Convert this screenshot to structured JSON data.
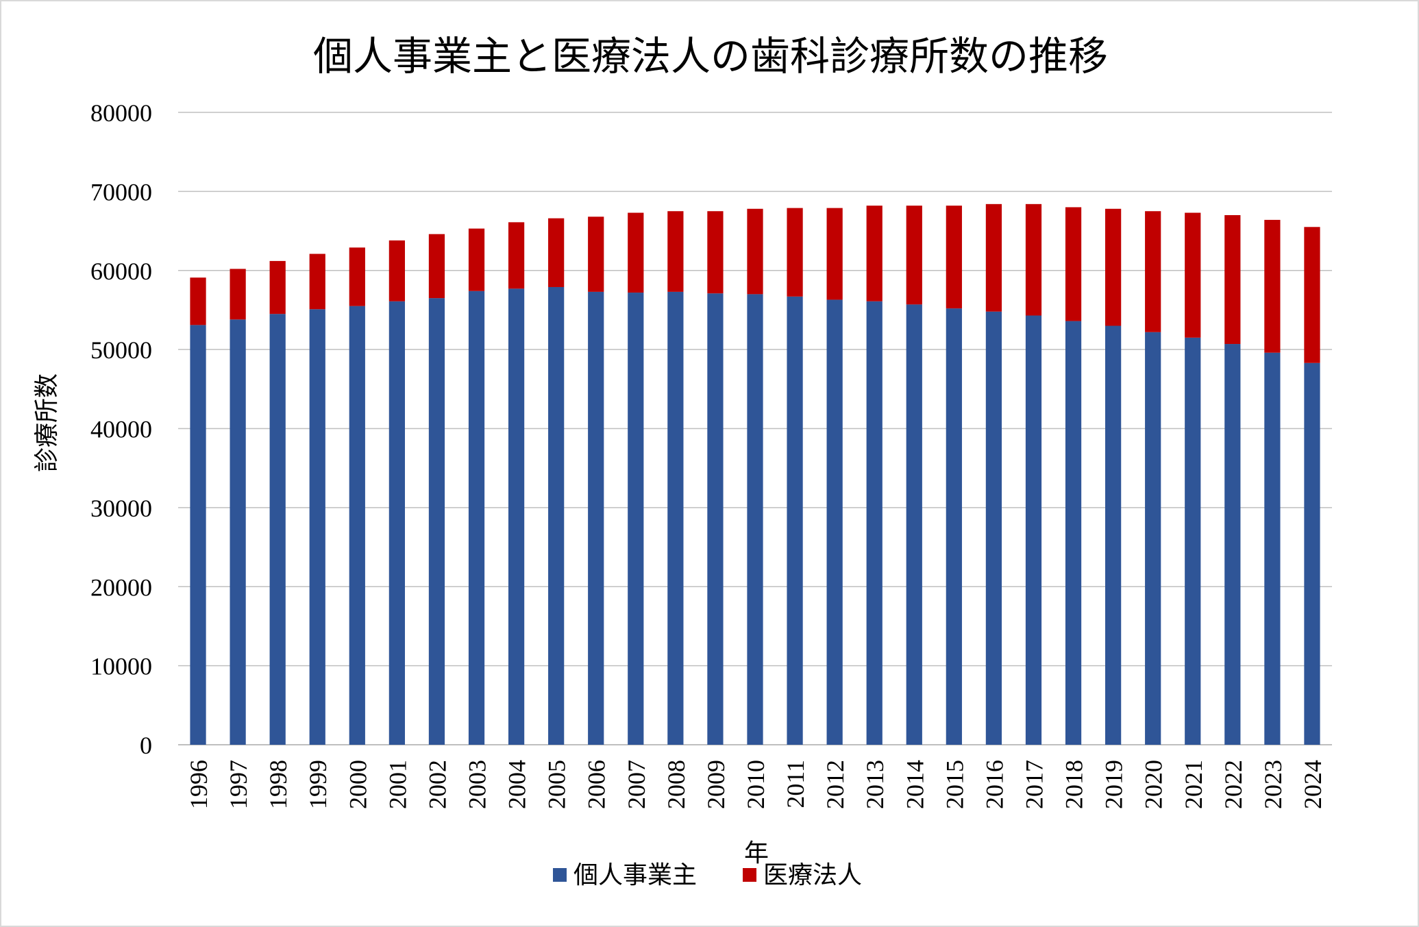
{
  "chart_data": {
    "type": "bar",
    "stacked": true,
    "title": "個人事業主と医療法人の歯科診療所数の推移",
    "xlabel": "年",
    "ylabel": "診療所数",
    "ylim": [
      0,
      80000
    ],
    "yticks": [
      0,
      10000,
      20000,
      30000,
      40000,
      50000,
      60000,
      70000,
      80000
    ],
    "grid": true,
    "legend_position": "bottom",
    "categories": [
      "1996",
      "1997",
      "1998",
      "1999",
      "2000",
      "2001",
      "2002",
      "2003",
      "2004",
      "2005",
      "2006",
      "2007",
      "2008",
      "2009",
      "2010",
      "2011",
      "2012",
      "2013",
      "2014",
      "2015",
      "2016",
      "2017",
      "2018",
      "2019",
      "2020",
      "2021",
      "2022",
      "2023",
      "2024"
    ],
    "series": [
      {
        "name": "個人事業主",
        "color": "#2f5597",
        "values": [
          53100,
          53800,
          54500,
          55100,
          55500,
          56100,
          56500,
          57400,
          57700,
          57900,
          57300,
          57200,
          57300,
          57100,
          57000,
          56700,
          56300,
          56100,
          55700,
          55200,
          54800,
          54300,
          53600,
          53000,
          52200,
          51500,
          50700,
          49600,
          48300
        ]
      },
      {
        "name": "医療法人",
        "color": "#c00000",
        "values": [
          6000,
          6400,
          6700,
          7000,
          7400,
          7700,
          8100,
          7900,
          8400,
          8700,
          9500,
          10100,
          10200,
          10400,
          10800,
          11200,
          11600,
          12100,
          12500,
          13000,
          13600,
          14100,
          14400,
          14800,
          15300,
          15800,
          16300,
          16800,
          17200
        ]
      }
    ]
  },
  "colors": {
    "gridline": "#bfbfbf",
    "axis": "#bfbfbf",
    "frame_border": "#d9d9d9"
  }
}
